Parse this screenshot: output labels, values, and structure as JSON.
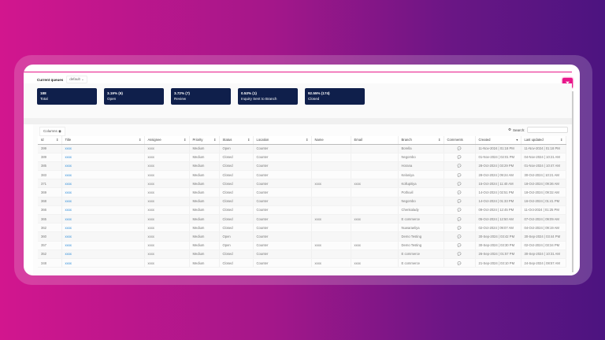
{
  "header": {
    "queue_label": "Current queues",
    "queue_value": "default"
  },
  "colors": {
    "accent": "#e8168a",
    "stat_bg": "#0f1f4b",
    "link": "#2a8ad8"
  },
  "stats": [
    {
      "value": "188",
      "label": "Total"
    },
    {
      "value": "3.19% (6)",
      "label": "Open"
    },
    {
      "value": "3.72% (7)",
      "label": "Review"
    },
    {
      "value": "0.53% (1)",
      "label": "Inquiry Sent to Branch"
    },
    {
      "value": "92.55% (174)",
      "label": "Closed"
    }
  ],
  "table": {
    "columns_button": "Columns",
    "search_label": "Search:",
    "headers": [
      "Id",
      "Title",
      "Assignee",
      "Priority",
      "Status",
      "Location",
      "Name",
      "Email",
      "Branch",
      "Comments",
      "Created",
      "Last updated"
    ],
    "rows": [
      [
        "399",
        "xxxx",
        "xxxx",
        "Medium",
        "Open",
        "Counter",
        "",
        "",
        "Borella",
        "",
        "11-Nov-2024 | 01:18 PM",
        "11-Nov-2024 | 01:18 PM"
      ],
      [
        "389",
        "xxxx",
        "xxxx",
        "Medium",
        "Closed",
        "Counter",
        "",
        "",
        "Negombo",
        "",
        "01-Nov-2024 | 02:01 PM",
        "04-Nov-2024 | 10:21 AM"
      ],
      [
        "385",
        "xxxx",
        "xxxx",
        "Medium",
        "Closed",
        "Counter",
        "",
        "",
        "Horana",
        "",
        "28-Oct-2024 | 03:29 PM",
        "01-Nov-2024 | 10:47 AM"
      ],
      [
        "383",
        "xxxx",
        "xxxx",
        "Medium",
        "Closed",
        "Counter",
        "",
        "",
        "Kelaniya",
        "",
        "28-Oct-2024 | 09:24 AM",
        "30-Oct-2024 | 10:21 AM"
      ],
      [
        "371",
        "xxxx",
        "xxxx",
        "Medium",
        "Closed",
        "Counter",
        "xxxx",
        "xxxx",
        "Kollupitiya",
        "",
        "15-Oct-2024 | 11:40 AM",
        "18-Oct-2024 | 09:36 AM"
      ],
      [
        "369",
        "xxxx",
        "xxxx",
        "Medium",
        "Closed",
        "Counter",
        "",
        "",
        "Pothuvil",
        "",
        "14-Oct-2024 | 02:51 PM",
        "18-Oct-2024 | 09:32 AM"
      ],
      [
        "368",
        "xxxx",
        "xxxx",
        "Medium",
        "Closed",
        "Counter",
        "",
        "",
        "Negombo",
        "",
        "14-Oct-2024 | 01:33 PM",
        "16-Oct-2024 | 01:41 PM"
      ],
      [
        "366",
        "xxxx",
        "xxxx",
        "Medium",
        "Closed",
        "Counter",
        "",
        "",
        "Chenkalady",
        "",
        "09-Oct-2024 | 12:45 PM",
        "11-Oct-2024 | 01:25 PM"
      ],
      [
        "365",
        "xxxx",
        "xxxx",
        "Medium",
        "Closed",
        "Counter",
        "xxxx",
        "xxxx",
        "E commerce",
        "",
        "05-Oct-2024 | 12:50 AM",
        "07-Oct-2024 | 09:09 AM"
      ],
      [
        "362",
        "xxxx",
        "xxxx",
        "Medium",
        "Closed",
        "Counter",
        "",
        "",
        "Nuwaraeliya",
        "",
        "02-Oct-2024 | 09:07 AM",
        "04-Oct-2024 | 09:19 AM"
      ],
      [
        "360",
        "xxxx",
        "xxxx",
        "Medium",
        "Open",
        "Counter",
        "",
        "",
        "Demo Testing",
        "",
        "30-Sep-2024 | 03:42 PM",
        "30-Sep-2024 | 03:44 PM"
      ],
      [
        "357",
        "xxxx",
        "xxxx",
        "Medium",
        "Open",
        "Counter",
        "xxxx",
        "xxxx",
        "Demo Testing",
        "",
        "30-Sep-2024 | 03:30 PM",
        "02-Oct-2024 | 03:34 PM"
      ],
      [
        "352",
        "xxxx",
        "xxxx",
        "Medium",
        "Closed",
        "Counter",
        "",
        "",
        "E commerce",
        "",
        "26-Sep-2024 | 01:57 PM",
        "30-Sep-2024 | 10:31 AM"
      ],
      [
        "348",
        "xxxx",
        "xxxx",
        "Medium",
        "Closed",
        "Counter",
        "xxxx",
        "xxxx",
        "E commerce",
        "",
        "21-Sep-2024 | 03:10 PM",
        "24-Sep-2024 | 08:57 AM"
      ]
    ]
  }
}
